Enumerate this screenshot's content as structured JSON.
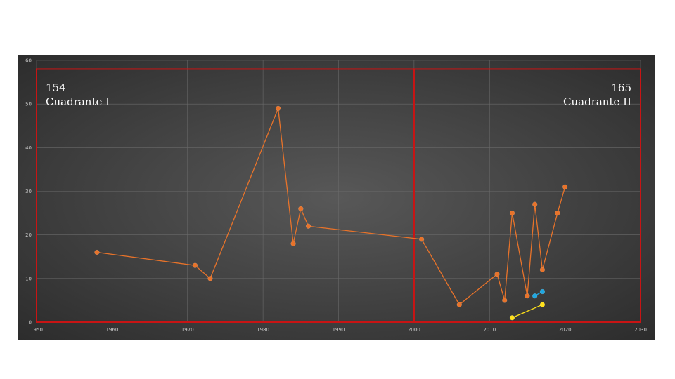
{
  "chart_data": {
    "type": "scatter",
    "x_ticks": [
      1950,
      1960,
      1970,
      1980,
      1990,
      2000,
      2010,
      2020,
      2030
    ],
    "y_ticks": [
      0,
      10,
      20,
      30,
      40,
      50,
      60
    ],
    "xlim": [
      1950,
      2030
    ],
    "ylim": [
      0,
      60
    ],
    "grid": true,
    "background": "#404040",
    "series": [
      {
        "color": "#e8732a",
        "x": [
          1958,
          1971,
          1973,
          1982,
          1984,
          1985,
          1986,
          2001,
          2006,
          2011,
          2012,
          2013,
          2015,
          2016,
          2017,
          2019,
          2020
        ],
        "y": [
          16,
          13,
          10,
          49,
          18,
          26,
          22,
          19,
          4,
          11,
          5,
          25,
          6,
          27,
          12,
          25,
          31
        ]
      },
      {
        "color": "#1ea7e1",
        "x": [
          2016,
          2017
        ],
        "y": [
          6,
          7
        ]
      },
      {
        "color": "#ffe11a",
        "x": [
          2013,
          2017
        ],
        "y": [
          1,
          4
        ]
      }
    ],
    "quadrants": [
      {
        "count": "154",
        "label": "Cuadrante I",
        "x_range": [
          1950,
          2000
        ],
        "y_range": [
          0,
          58
        ],
        "align": "left"
      },
      {
        "count": "165",
        "label": "Cuadrante II",
        "x_range": [
          2000,
          2030
        ],
        "y_range": [
          0,
          58
        ],
        "align": "right"
      }
    ],
    "quadrant_border_color": "#c81414"
  }
}
